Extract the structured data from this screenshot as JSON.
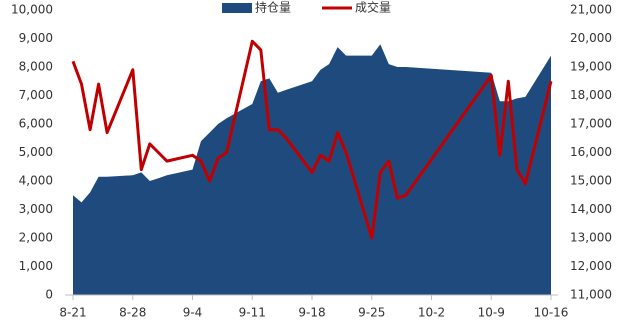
{
  "chart_data": {
    "type": "area-line",
    "x": [
      "8-21",
      "8-22",
      "8-23",
      "8-24",
      "8-25",
      "8-28",
      "8-29",
      "8-30",
      "8-31",
      "9-1",
      "9-4",
      "9-5",
      "9-6",
      "9-7",
      "9-8",
      "9-11",
      "9-12",
      "9-13",
      "9-14",
      "9-15",
      "9-18",
      "9-19",
      "9-20",
      "9-21",
      "9-22",
      "9-25",
      "9-26",
      "9-27",
      "9-28",
      "9-29",
      "10-9",
      "10-10",
      "10-11",
      "10-12",
      "10-13",
      "10-16"
    ],
    "xticks": [
      "8-21",
      "8-28",
      "9-4",
      "9-11",
      "9-18",
      "9-25",
      "10-2",
      "10-9",
      "10-16"
    ],
    "series": [
      {
        "name": "持仓量",
        "color": "#1f4a7d",
        "kind": "area",
        "values": [
          3500,
          3250,
          3600,
          4150,
          4150,
          4200,
          4300,
          4000,
          4100,
          4200,
          4400,
          5400,
          5700,
          6000,
          6200,
          6700,
          7500,
          7600,
          7100,
          7200,
          7500,
          7900,
          8100,
          8700,
          8400,
          8400,
          8800,
          8100,
          8000,
          8000,
          7800,
          6800,
          6800,
          6900,
          6950,
          8400
        ]
      },
      {
        "name": "成交量",
        "color": "#c00000",
        "kind": "line",
        "axis": "y2",
        "values": [
          19200,
          18400,
          16800,
          18400,
          16700,
          18900,
          15400,
          16300,
          16000,
          15700,
          15900,
          15700,
          15000,
          15800,
          16000,
          19900,
          19600,
          16800,
          16800,
          16500,
          15300,
          15900,
          15700,
          16700,
          16000,
          13000,
          15300,
          15700,
          14400,
          14500,
          18700,
          15900,
          18500,
          15400,
          14900,
          18500
        ]
      }
    ],
    "ylim": [
      0,
      10000
    ],
    "yticks": [
      0,
      {
        "value": 1000,
        "label": "1,000"
      },
      {
        "value": 2000,
        "label": "2,000"
      },
      {
        "value": 3000,
        "label": "3,000"
      },
      {
        "value": 4000,
        "label": "4,000"
      },
      {
        "value": 5000,
        "label": "5,000"
      },
      {
        "value": 6000,
        "label": "6,000"
      },
      {
        "value": 7000,
        "label": "7,000"
      },
      {
        "value": 8000,
        "label": "8,000"
      },
      {
        "value": 9000,
        "label": "9,000"
      },
      {
        "value": 10000,
        "label": "10,000"
      }
    ],
    "y2lim": [
      11000,
      21000
    ],
    "y2ticks": [
      {
        "value": 11000,
        "label": "11,000"
      },
      {
        "value": 12000,
        "label": "12,000"
      },
      {
        "value": 13000,
        "label": "13,000"
      },
      {
        "value": 14000,
        "label": "14,000"
      },
      {
        "value": 15000,
        "label": "15,000"
      },
      {
        "value": 16000,
        "label": "16,000"
      },
      {
        "value": 17000,
        "label": "17,000"
      },
      {
        "value": 18000,
        "label": "18,000"
      },
      {
        "value": 19000,
        "label": "19,000"
      },
      {
        "value": 20000,
        "label": "20,000"
      },
      {
        "value": 21000,
        "label": "21,000"
      }
    ],
    "legend": "top"
  }
}
